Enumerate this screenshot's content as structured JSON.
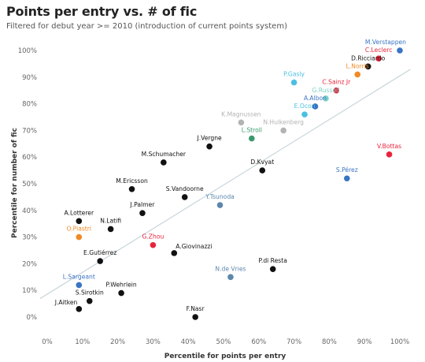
{
  "title": "Points per entry vs. # of fic",
  "subtitle": "Filtered for debut year >= 2010 (introduction of current points system)",
  "colors": {
    "black": "#111111",
    "red": "#e8243c",
    "blue": "#3a74c4",
    "orange": "#f08a24",
    "cyan": "#4bbfe0",
    "teal": "#7fd1c6",
    "green": "#3a9a6e",
    "gray": "#b3b3b3",
    "slate": "#5c87ad",
    "trendline": "#c9d6dc"
  },
  "chart_data": {
    "type": "scatter",
    "xlabel": "Percentile for points per entry",
    "ylabel": "Percentile for number of fic",
    "xlim": [
      0,
      100
    ],
    "ylim": [
      0,
      100
    ],
    "xticks": [
      "0%",
      "10%",
      "20%",
      "30%",
      "40%",
      "50%",
      "60%",
      "70%",
      "80%",
      "90%",
      "100%"
    ],
    "yticks": [
      "0%",
      "10%",
      "20%",
      "30%",
      "40%",
      "50%",
      "60%",
      "70%",
      "80%",
      "90%",
      "100%"
    ],
    "grid": false,
    "trendline": true,
    "points": [
      {
        "label": "M.Verstappen",
        "x": 100,
        "y": 100,
        "color": "blue",
        "labelPos": "above"
      },
      {
        "label": "C.Leclerc",
        "x": 94,
        "y": 97,
        "color": "red",
        "labelPos": "above"
      },
      {
        "label": "D.Ricciardo",
        "x": 91,
        "y": 94,
        "color": "black",
        "labelPos": "above"
      },
      {
        "label": "L.Norris",
        "x": 88,
        "y": 91,
        "color": "orange",
        "labelPos": "above"
      },
      {
        "label": "P.Gasly",
        "x": 70,
        "y": 88,
        "color": "cyan",
        "labelPos": "above"
      },
      {
        "label": "C.Sainz Jr",
        "x": 82,
        "y": 85,
        "color": "red",
        "labelPos": "above"
      },
      {
        "label": "G.Russell",
        "x": 79,
        "y": 82,
        "color": "teal",
        "labelPos": "above"
      },
      {
        "label": "A.Albon",
        "x": 76,
        "y": 79,
        "color": "blue",
        "labelPos": "above"
      },
      {
        "label": "E.Ocon",
        "x": 73,
        "y": 76,
        "color": "cyan",
        "labelPos": "above"
      },
      {
        "label": "K.Magnussen",
        "x": 55,
        "y": 73,
        "color": "gray",
        "labelPos": "above"
      },
      {
        "label": "N.Hulkenberg",
        "x": 67,
        "y": 70,
        "color": "gray",
        "labelPos": "above"
      },
      {
        "label": "L.Stroll",
        "x": 58,
        "y": 67,
        "color": "green",
        "labelPos": "above"
      },
      {
        "label": "J.Vergne",
        "x": 46,
        "y": 64,
        "color": "black",
        "labelPos": "above"
      },
      {
        "label": "V.Bottas",
        "x": 97,
        "y": 61,
        "color": "red",
        "labelPos": "above"
      },
      {
        "label": "M.Schumacher",
        "x": 33,
        "y": 58,
        "color": "black",
        "labelPos": "above"
      },
      {
        "label": "D.Kvyat",
        "x": 61,
        "y": 55,
        "color": "black",
        "labelPos": "above"
      },
      {
        "label": "S.Pérez",
        "x": 85,
        "y": 52,
        "color": "blue",
        "labelPos": "above"
      },
      {
        "label": "M.Ericsson",
        "x": 24,
        "y": 48,
        "color": "black",
        "labelPos": "above"
      },
      {
        "label": "S.Vandoorne",
        "x": 39,
        "y": 45,
        "color": "black",
        "labelPos": "above"
      },
      {
        "label": "Y.Tsunoda",
        "x": 49,
        "y": 42,
        "color": "slate",
        "labelPos": "above"
      },
      {
        "label": "J.Palmer",
        "x": 27,
        "y": 39,
        "color": "black",
        "labelPos": "above"
      },
      {
        "label": "A.Lotterer",
        "x": 9,
        "y": 36,
        "color": "black",
        "labelPos": "above"
      },
      {
        "label": "N.Latifi",
        "x": 18,
        "y": 33,
        "color": "black",
        "labelPos": "above"
      },
      {
        "label": "O.Piastri",
        "x": 9,
        "y": 30,
        "color": "orange",
        "labelPos": "above"
      },
      {
        "label": "G.Zhou",
        "x": 30,
        "y": 27,
        "color": "red",
        "labelPos": "above"
      },
      {
        "label": "A.Giovinazzi",
        "x": 36,
        "y": 24,
        "color": "black",
        "labelPos": "aboveRight"
      },
      {
        "label": "E.Gutiérrez",
        "x": 15,
        "y": 21,
        "color": "black",
        "labelPos": "above"
      },
      {
        "label": "P.di Resta",
        "x": 64,
        "y": 18,
        "color": "black",
        "labelPos": "above"
      },
      {
        "label": "N.de Vries",
        "x": 52,
        "y": 15,
        "color": "slate",
        "labelPos": "above"
      },
      {
        "label": "L.Sargeant",
        "x": 9,
        "y": 12,
        "color": "blue",
        "labelPos": "above"
      },
      {
        "label": "P.Wehrlein",
        "x": 21,
        "y": 9,
        "color": "black",
        "labelPos": "above"
      },
      {
        "label": "S.Sirotkin",
        "x": 12,
        "y": 6,
        "color": "black",
        "labelPos": "above"
      },
      {
        "label": "J.Aitken",
        "x": 9,
        "y": 3,
        "color": "black",
        "labelPos": "aboveLeft"
      },
      {
        "label": "F.Nasr",
        "x": 42,
        "y": 0,
        "color": "black",
        "labelPos": "above"
      }
    ]
  }
}
